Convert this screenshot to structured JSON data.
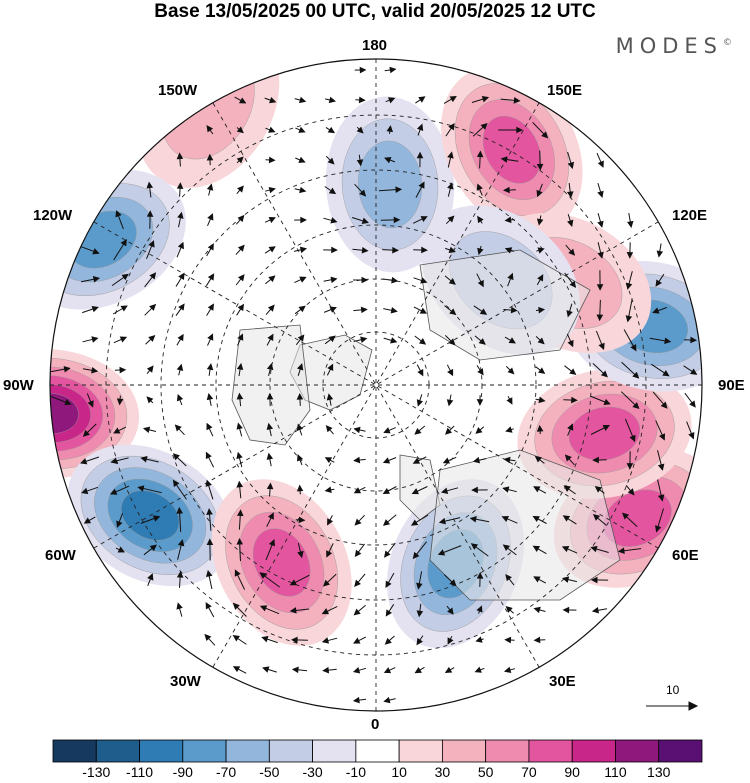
{
  "title": "Base 13/05/2025 00 UTC, valid 20/05/2025 12 UTC",
  "brand": "MODES",
  "brand_mark": "©",
  "longitudes": {
    "lon_180": "180",
    "lon_150w": "150W",
    "lon_150e": "150E",
    "lon_120w": "120W",
    "lon_120e": "120E",
    "lon_90w": "90W",
    "lon_90e": "90E",
    "lon_60w": "60W",
    "lon_60e": "60E",
    "lon_30w": "30W",
    "lon_30e": "30E",
    "lon_0": "0"
  },
  "vector_scale_label": "10",
  "colorbar": {
    "ticks": [
      "-130",
      "-110",
      "-90",
      "-70",
      "-50",
      "-30",
      "-10",
      "10",
      "30",
      "50",
      "70",
      "90",
      "110",
      "130"
    ],
    "colors": [
      "#163a5f",
      "#1e5d8c",
      "#2f7bb4",
      "#5b9bcc",
      "#93b6dd",
      "#c3cde6",
      "#e4e2f1",
      "#ffffff",
      "#f8d6d9",
      "#f4b2bf",
      "#f08bb0",
      "#e4559f",
      "#c9268a",
      "#8f187c",
      "#5a1073"
    ]
  },
  "anomaly_centers": [
    {
      "lon": -85,
      "lat": 30,
      "value": 110
    },
    {
      "lon": 176,
      "lat": 53,
      "value": -60
    },
    {
      "lon": 150,
      "lat": 40,
      "value": 80
    },
    {
      "lon": -149,
      "lat": 30,
      "value": 40
    },
    {
      "lon": -118,
      "lat": 33,
      "value": -70
    },
    {
      "lon": -60,
      "lat": 42,
      "value": -90
    },
    {
      "lon": -28,
      "lat": 53,
      "value": 80
    },
    {
      "lon": 24,
      "lat": 54,
      "value": -80
    },
    {
      "lon": 63,
      "lat": 36,
      "value": 80
    },
    {
      "lon": 78,
      "lat": 47,
      "value": 75
    },
    {
      "lon": 102,
      "lat": 38,
      "value": -70
    },
    {
      "lon": 118,
      "lat": 50,
      "value": 40
    },
    {
      "lon": 130,
      "lat": 60,
      "value": -40
    }
  ]
}
